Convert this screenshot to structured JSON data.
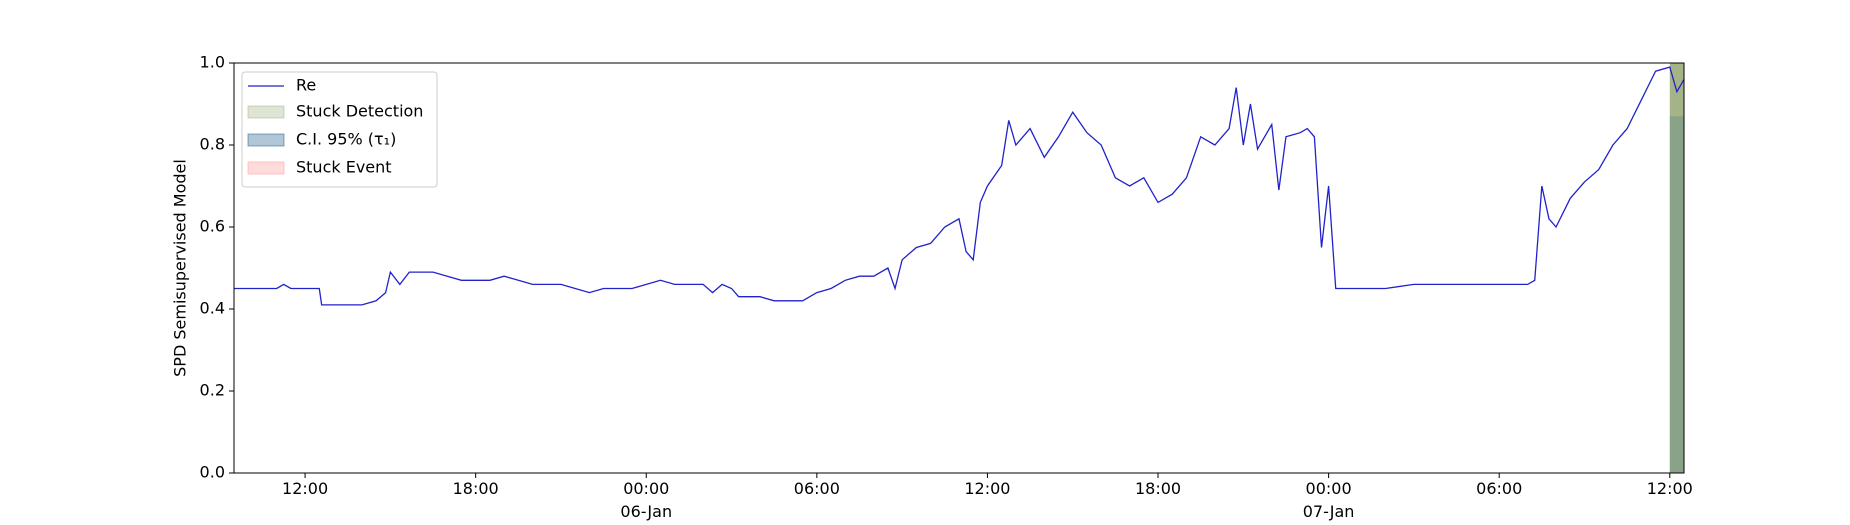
{
  "chart_data": {
    "type": "line",
    "ylabel": "SPD Semisupervised Model",
    "xlim": [
      "1900-01-05T09:30",
      "1900-01-07T12:30"
    ],
    "xticks": [
      {
        "value": "1900-01-05T12:00",
        "label": "12:00"
      },
      {
        "value": "1900-01-05T18:00",
        "label": "18:00"
      },
      {
        "value": "1900-01-06T00:00",
        "label": "00:00\n06-Jan\n1900"
      },
      {
        "value": "1900-01-06T06:00",
        "label": "06:00"
      },
      {
        "value": "1900-01-06T12:00",
        "label": "12:00"
      },
      {
        "value": "1900-01-06T18:00",
        "label": "18:00"
      },
      {
        "value": "1900-01-07T00:00",
        "label": "00:00\n07-Jan"
      },
      {
        "value": "1900-01-07T06:00",
        "label": "06:00"
      },
      {
        "value": "1900-01-07T12:00",
        "label": "12:00"
      }
    ],
    "ylim": [
      0,
      1
    ],
    "yticks": [
      {
        "value": 0,
        "label": "0.0"
      },
      {
        "value": 0.2,
        "label": "0.2"
      },
      {
        "value": 0.4,
        "label": "0.4"
      },
      {
        "value": 0.6,
        "label": "0.6"
      },
      {
        "value": 0.8,
        "label": "0.8"
      },
      {
        "value": 1,
        "label": "1.0"
      }
    ],
    "x": [
      "1900-01-05T09:30",
      "1900-01-05T10:00",
      "1900-01-05T10:30",
      "1900-01-05T11:00",
      "1900-01-05T11:15",
      "1900-01-05T11:30",
      "1900-01-05T12:00",
      "1900-01-05T12:30",
      "1900-01-05T12:35",
      "1900-01-05T13:00",
      "1900-01-05T13:30",
      "1900-01-05T14:00",
      "1900-01-05T14:30",
      "1900-01-05T14:50",
      "1900-01-05T15:00",
      "1900-01-05T15:20",
      "1900-01-05T15:40",
      "1900-01-05T16:00",
      "1900-01-05T16:30",
      "1900-01-05T17:00",
      "1900-01-05T17:30",
      "1900-01-05T18:00",
      "1900-01-05T18:30",
      "1900-01-05T19:00",
      "1900-01-05T19:30",
      "1900-01-05T20:00",
      "1900-01-05T20:30",
      "1900-01-05T21:00",
      "1900-01-05T21:30",
      "1900-01-05T22:00",
      "1900-01-05T22:30",
      "1900-01-05T23:00",
      "1900-01-05T23:30",
      "1900-01-06T00:00",
      "1900-01-06T00:30",
      "1900-01-06T01:00",
      "1900-01-06T01:30",
      "1900-01-06T02:00",
      "1900-01-06T02:20",
      "1900-01-06T02:40",
      "1900-01-06T03:00",
      "1900-01-06T03:15",
      "1900-01-06T03:30",
      "1900-01-06T04:00",
      "1900-01-06T04:30",
      "1900-01-06T05:00",
      "1900-01-06T05:30",
      "1900-01-06T06:00",
      "1900-01-06T06:30",
      "1900-01-06T07:00",
      "1900-01-06T07:30",
      "1900-01-06T08:00",
      "1900-01-06T08:30",
      "1900-01-06T08:45",
      "1900-01-06T09:00",
      "1900-01-06T09:30",
      "1900-01-06T10:00",
      "1900-01-06T10:30",
      "1900-01-06T11:00",
      "1900-01-06T11:15",
      "1900-01-06T11:30",
      "1900-01-06T11:45",
      "1900-01-06T12:00",
      "1900-01-06T12:30",
      "1900-01-06T12:45",
      "1900-01-06T13:00",
      "1900-01-06T13:30",
      "1900-01-06T14:00",
      "1900-01-06T14:30",
      "1900-01-06T15:00",
      "1900-01-06T15:30",
      "1900-01-06T16:00",
      "1900-01-06T16:30",
      "1900-01-06T17:00",
      "1900-01-06T17:30",
      "1900-01-06T18:00",
      "1900-01-06T18:30",
      "1900-01-06T19:00",
      "1900-01-06T19:30",
      "1900-01-06T20:00",
      "1900-01-06T20:30",
      "1900-01-06T20:45",
      "1900-01-06T21:00",
      "1900-01-06T21:15",
      "1900-01-06T21:30",
      "1900-01-06T22:00",
      "1900-01-06T22:15",
      "1900-01-06T22:30",
      "1900-01-06T23:00",
      "1900-01-06T23:15",
      "1900-01-06T23:30",
      "1900-01-06T23:45",
      "1900-01-07T00:00",
      "1900-01-07T00:15",
      "1900-01-07T01:00",
      "1900-01-07T02:00",
      "1900-01-07T03:00",
      "1900-01-07T04:00",
      "1900-01-07T05:00",
      "1900-01-07T06:00",
      "1900-01-07T07:00",
      "1900-01-07T07:15",
      "1900-01-07T07:30",
      "1900-01-07T07:45",
      "1900-01-07T08:00",
      "1900-01-07T08:30",
      "1900-01-07T09:00",
      "1900-01-07T09:30",
      "1900-01-07T10:00",
      "1900-01-07T10:30",
      "1900-01-07T11:00",
      "1900-01-07T11:30",
      "1900-01-07T12:00",
      "1900-01-07T12:15",
      "1900-01-07T12:30"
    ],
    "series": [
      {
        "name": "Re",
        "color": "#2222cc",
        "values": [
          0.45,
          0.45,
          0.45,
          0.45,
          0.46,
          0.45,
          0.45,
          0.45,
          0.41,
          0.41,
          0.41,
          0.41,
          0.42,
          0.44,
          0.49,
          0.46,
          0.49,
          0.49,
          0.49,
          0.48,
          0.47,
          0.47,
          0.47,
          0.48,
          0.47,
          0.46,
          0.46,
          0.46,
          0.45,
          0.44,
          0.45,
          0.45,
          0.45,
          0.46,
          0.47,
          0.46,
          0.46,
          0.46,
          0.44,
          0.46,
          0.45,
          0.43,
          0.43,
          0.43,
          0.42,
          0.42,
          0.42,
          0.44,
          0.45,
          0.47,
          0.48,
          0.48,
          0.5,
          0.45,
          0.52,
          0.55,
          0.56,
          0.6,
          0.62,
          0.54,
          0.52,
          0.66,
          0.7,
          0.75,
          0.86,
          0.8,
          0.84,
          0.77,
          0.82,
          0.88,
          0.83,
          0.8,
          0.72,
          0.7,
          0.72,
          0.66,
          0.68,
          0.72,
          0.82,
          0.8,
          0.84,
          0.94,
          0.8,
          0.9,
          0.79,
          0.85,
          0.69,
          0.82,
          0.83,
          0.84,
          0.82,
          0.55,
          0.7,
          0.45,
          0.45,
          0.45,
          0.46,
          0.46,
          0.46,
          0.46,
          0.46,
          0.47,
          0.7,
          0.62,
          0.6,
          0.67,
          0.71,
          0.74,
          0.8,
          0.84,
          0.91,
          0.98,
          0.99,
          0.93,
          0.96
        ]
      }
    ],
    "spans": [
      {
        "name": "Stuck Detection",
        "color": "#a4b487",
        "alpha": 1,
        "x": [
          "1900-01-07T12:00",
          "1900-01-07T12:30"
        ],
        "y": [
          0,
          1
        ]
      },
      {
        "name": "C.I. 95% (τ₁)",
        "color": "#1f5f8b",
        "alpha": 0.2,
        "x": [
          "1900-01-07T12:00",
          "1900-01-07T12:30"
        ],
        "y": [
          0,
          0.87
        ]
      },
      {
        "name": "Stuck Event",
        "color": "#ff9999",
        "alpha": 0
      }
    ],
    "legend_alpha": 0.35,
    "legend": "upper left"
  }
}
